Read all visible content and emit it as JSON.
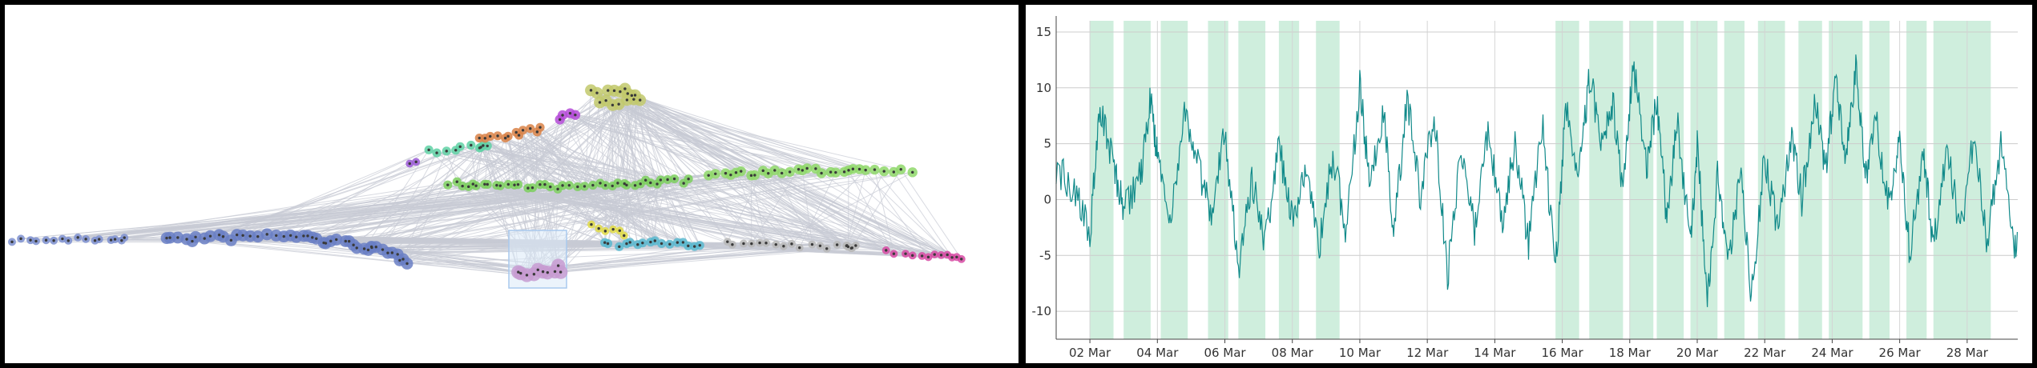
{
  "graph_panel": {
    "node_color": "#3a3a3a",
    "edge_color": "#c8cad4",
    "selection_color": "#a9c9ee",
    "clusters": [
      {
        "name": "cluster-blue-long",
        "color": "#7d8fcf"
      },
      {
        "name": "cluster-blue-dense",
        "color": "#6a7fc4"
      },
      {
        "name": "cluster-lilac",
        "color": "#c79bd1"
      },
      {
        "name": "cluster-green-main",
        "color": "#7ccf5e"
      },
      {
        "name": "cluster-green-right",
        "color": "#8fd86a"
      },
      {
        "name": "cluster-teal-upper",
        "color": "#5fd1a4"
      },
      {
        "name": "cluster-orange",
        "color": "#d98248"
      },
      {
        "name": "cluster-magenta-small",
        "color": "#b54bd8"
      },
      {
        "name": "cluster-olive",
        "color": "#c2c96c"
      },
      {
        "name": "cluster-yellow",
        "color": "#e2dc45"
      },
      {
        "name": "cluster-cyan",
        "color": "#59b9cf"
      },
      {
        "name": "cluster-gray",
        "color": "#b8b8b8"
      },
      {
        "name": "cluster-pink",
        "color": "#d74aa3"
      },
      {
        "name": "cluster-purple-dot",
        "color": "#9b5ad6"
      }
    ]
  },
  "chart_data": {
    "type": "line",
    "title": "",
    "xlabel": "",
    "ylabel": "",
    "x_range": [
      "2023-03-01",
      "2023-03-29 12:00"
    ],
    "ylim": [
      -12.5,
      16
    ],
    "y_ticks": [
      -10,
      -5,
      0,
      5,
      10,
      15
    ],
    "x_tick_labels": [
      "02 Mar",
      "04 Mar",
      "06 Mar",
      "08 Mar",
      "10 Mar",
      "12 Mar",
      "14 Mar",
      "16 Mar",
      "18 Mar",
      "20 Mar",
      "22 Mar",
      "24 Mar",
      "26 Mar",
      "28 Mar"
    ],
    "x_tick_days": [
      1,
      3,
      5,
      7,
      9,
      11,
      13,
      15,
      17,
      19,
      21,
      23,
      25,
      27
    ],
    "grid": true,
    "line_color": "#118a8a",
    "shade_color": "#cfeedd",
    "shaded_day_ranges": [
      [
        1.0,
        1.7
      ],
      [
        2.0,
        2.8
      ],
      [
        3.1,
        3.9
      ],
      [
        4.5,
        5.1
      ],
      [
        5.4,
        6.2
      ],
      [
        6.6,
        7.2
      ],
      [
        7.7,
        8.4
      ],
      [
        14.8,
        15.5
      ],
      [
        15.8,
        16.8
      ],
      [
        17.0,
        17.7
      ],
      [
        17.8,
        18.6
      ],
      [
        18.8,
        19.6
      ],
      [
        19.8,
        20.4
      ],
      [
        20.8,
        21.6
      ],
      [
        22.0,
        22.7
      ],
      [
        22.9,
        23.9
      ],
      [
        24.1,
        24.7
      ],
      [
        25.2,
        25.8
      ],
      [
        26.0,
        27.7
      ]
    ],
    "series": [
      {
        "values": [
          {
            "d": 0.0,
            "v": 3
          },
          {
            "d": 0.5,
            "v": 1
          },
          {
            "d": 1.0,
            "v": -3
          },
          {
            "d": 1.3,
            "v": 8
          },
          {
            "d": 1.7,
            "v": 3
          },
          {
            "d": 2.0,
            "v": -1
          },
          {
            "d": 2.5,
            "v": 2
          },
          {
            "d": 2.8,
            "v": 9
          },
          {
            "d": 3.0,
            "v": 4
          },
          {
            "d": 3.4,
            "v": -2
          },
          {
            "d": 3.8,
            "v": 8
          },
          {
            "d": 4.2,
            "v": 3
          },
          {
            "d": 4.6,
            "v": -1
          },
          {
            "d": 5.0,
            "v": 6
          },
          {
            "d": 5.4,
            "v": -6
          },
          {
            "d": 5.8,
            "v": 2
          },
          {
            "d": 6.2,
            "v": -4
          },
          {
            "d": 6.6,
            "v": 5
          },
          {
            "d": 7.0,
            "v": -2
          },
          {
            "d": 7.4,
            "v": 3
          },
          {
            "d": 7.8,
            "v": -4
          },
          {
            "d": 8.2,
            "v": 4
          },
          {
            "d": 8.6,
            "v": -3
          },
          {
            "d": 9.0,
            "v": 10
          },
          {
            "d": 9.3,
            "v": 1
          },
          {
            "d": 9.7,
            "v": 8
          },
          {
            "d": 10.0,
            "v": -3
          },
          {
            "d": 10.4,
            "v": 9
          },
          {
            "d": 10.8,
            "v": 0
          },
          {
            "d": 11.2,
            "v": 8
          },
          {
            "d": 11.6,
            "v": -7
          },
          {
            "d": 12.0,
            "v": 5
          },
          {
            "d": 12.4,
            "v": -3
          },
          {
            "d": 12.8,
            "v": 6
          },
          {
            "d": 13.2,
            "v": -2
          },
          {
            "d": 13.6,
            "v": 5
          },
          {
            "d": 14.0,
            "v": -4
          },
          {
            "d": 14.4,
            "v": 7
          },
          {
            "d": 14.8,
            "v": -6
          },
          {
            "d": 15.1,
            "v": 8
          },
          {
            "d": 15.5,
            "v": 2
          },
          {
            "d": 15.8,
            "v": 11
          },
          {
            "d": 16.2,
            "v": 5
          },
          {
            "d": 16.5,
            "v": 9
          },
          {
            "d": 16.8,
            "v": 0
          },
          {
            "d": 17.1,
            "v": 12
          },
          {
            "d": 17.5,
            "v": 3
          },
          {
            "d": 17.8,
            "v": 9
          },
          {
            "d": 18.1,
            "v": -2
          },
          {
            "d": 18.4,
            "v": 7
          },
          {
            "d": 18.8,
            "v": -4
          },
          {
            "d": 19.0,
            "v": 5
          },
          {
            "d": 19.3,
            "v": -9
          },
          {
            "d": 19.6,
            "v": 2
          },
          {
            "d": 19.9,
            "v": -6
          },
          {
            "d": 20.3,
            "v": 3
          },
          {
            "d": 20.6,
            "v": -9
          },
          {
            "d": 21.0,
            "v": 4
          },
          {
            "d": 21.4,
            "v": -3
          },
          {
            "d": 21.8,
            "v": 6
          },
          {
            "d": 22.1,
            "v": 0
          },
          {
            "d": 22.5,
            "v": 9
          },
          {
            "d": 22.8,
            "v": 2
          },
          {
            "d": 23.1,
            "v": 11
          },
          {
            "d": 23.4,
            "v": 4
          },
          {
            "d": 23.7,
            "v": 12
          },
          {
            "d": 24.0,
            "v": 2
          },
          {
            "d": 24.3,
            "v": 7
          },
          {
            "d": 24.7,
            "v": -1
          },
          {
            "d": 25.0,
            "v": 5
          },
          {
            "d": 25.3,
            "v": -5
          },
          {
            "d": 25.7,
            "v": 4
          },
          {
            "d": 26.0,
            "v": -4
          },
          {
            "d": 26.4,
            "v": 5
          },
          {
            "d": 26.8,
            "v": -3
          },
          {
            "d": 27.2,
            "v": 6
          },
          {
            "d": 27.6,
            "v": -4
          },
          {
            "d": 28.0,
            "v": 5
          },
          {
            "d": 28.4,
            "v": -5
          },
          {
            "d": 28.7,
            "v": 2
          },
          {
            "d": 29.0,
            "v": -3
          },
          {
            "d": 29.4,
            "v": 0
          }
        ]
      }
    ]
  }
}
